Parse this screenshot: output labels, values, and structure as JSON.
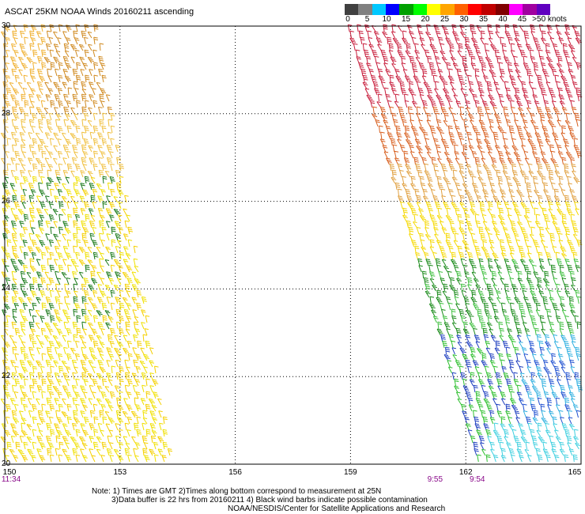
{
  "title": "ASCAT 25KM NOAA Winds 20160211 ascending",
  "legend": {
    "labels": [
      "0",
      "5",
      "10",
      "15",
      "20",
      "25",
      "30",
      "35",
      "40",
      "45",
      ">50 knots"
    ],
    "colors": [
      "#404040",
      "#808080",
      "#00c8ff",
      "#0000ff",
      "#00a000",
      "#00ff00",
      "#ffff00",
      "#ffa500",
      "#ff6000",
      "#ff0000",
      "#c00000",
      "#800000",
      "#ff00ff",
      "#a000a0",
      "#6000c0"
    ]
  },
  "map": {
    "lon_ticks": [
      "150",
      "153",
      "156",
      "159",
      "162",
      "165"
    ],
    "lat_ticks": [
      "30",
      "28",
      "26",
      "24",
      "22",
      "20"
    ],
    "lon_range": [
      150,
      165
    ],
    "lat_range": [
      20,
      30
    ]
  },
  "pass_times": [
    {
      "label": "11:34",
      "lon": 150
    },
    {
      "label": "9:55",
      "lon": 161.2
    },
    {
      "label": "9:54",
      "lon": 162.3
    }
  ],
  "note": {
    "line1": "Note: 1) Times are GMT 2)Times along bottom correspond to measurement at 25N",
    "line2": "3)Data buffer is 22 hrs from 20160211 4) Black wind barbs indicate possible contamination",
    "credit": "NOAA/NESDIS/Center for Satellite Applications and Research"
  }
}
